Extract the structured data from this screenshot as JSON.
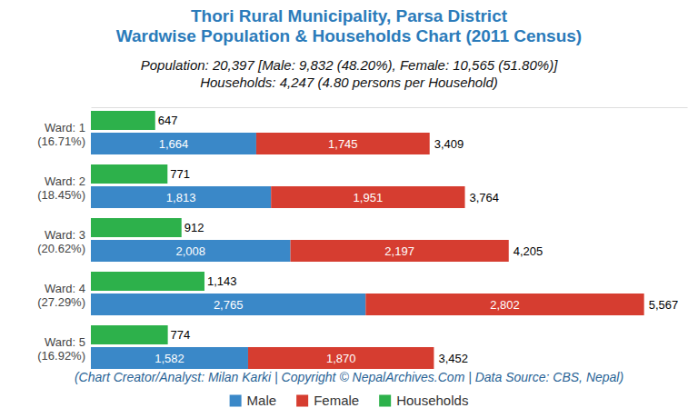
{
  "chart_data": {
    "type": "bar",
    "orientation": "horizontal",
    "stacked": true,
    "data_labels": true,
    "tick_labels": false,
    "grid": false,
    "legend": "bottom",
    "title": [
      "Thori Rural Municipality, Parsa District",
      "Wardwise Population & Households Chart (2011 Census)"
    ],
    "subtitle": [
      "Population: 20,397 [Male: 9,832 (48.20%), Female: 10,565 (51.80%)]",
      "Households: 4,247 (4.80 persons per Household)"
    ],
    "caption": "(Chart Creator/Analyst: Milan Karki | Copyright © NepalArchives.Com | Data Source: CBS, Nepal)",
    "categories": [
      "Ward: 1\n(16.71%)",
      "Ward: 2\n(18.45%)",
      "Ward: 3\n(20.62%)",
      "Ward: 4\n(27.29%)",
      "Ward: 5\n(16.92%)"
    ],
    "xlim": [
      0,
      6000
    ],
    "series": [
      {
        "name": "Male",
        "type": "stack",
        "color": "#3a88c8",
        "values": [
          1664,
          1813,
          2008,
          2765,
          1582
        ],
        "value_labels": [
          "1,664",
          "1,813",
          "2,008",
          "2,765",
          "1,582"
        ]
      },
      {
        "name": "Female",
        "type": "stack",
        "color": "#d63d30",
        "values": [
          1745,
          1951,
          2197,
          2802,
          1870
        ],
        "value_labels": [
          "1,745",
          "1,951",
          "2,197",
          "2,802",
          "1,870"
        ]
      },
      {
        "name": "Households",
        "type": "bar",
        "color": "#2db14b",
        "values": [
          647,
          771,
          912,
          1143,
          774
        ],
        "value_labels": [
          "647",
          "771",
          "912",
          "1,143",
          "774"
        ]
      }
    ],
    "totals": [
      3409,
      3764,
      4205,
      5567,
      3452
    ],
    "total_labels": [
      "3,409",
      "3,764",
      "4,205",
      "5,567",
      "3,452"
    ]
  }
}
